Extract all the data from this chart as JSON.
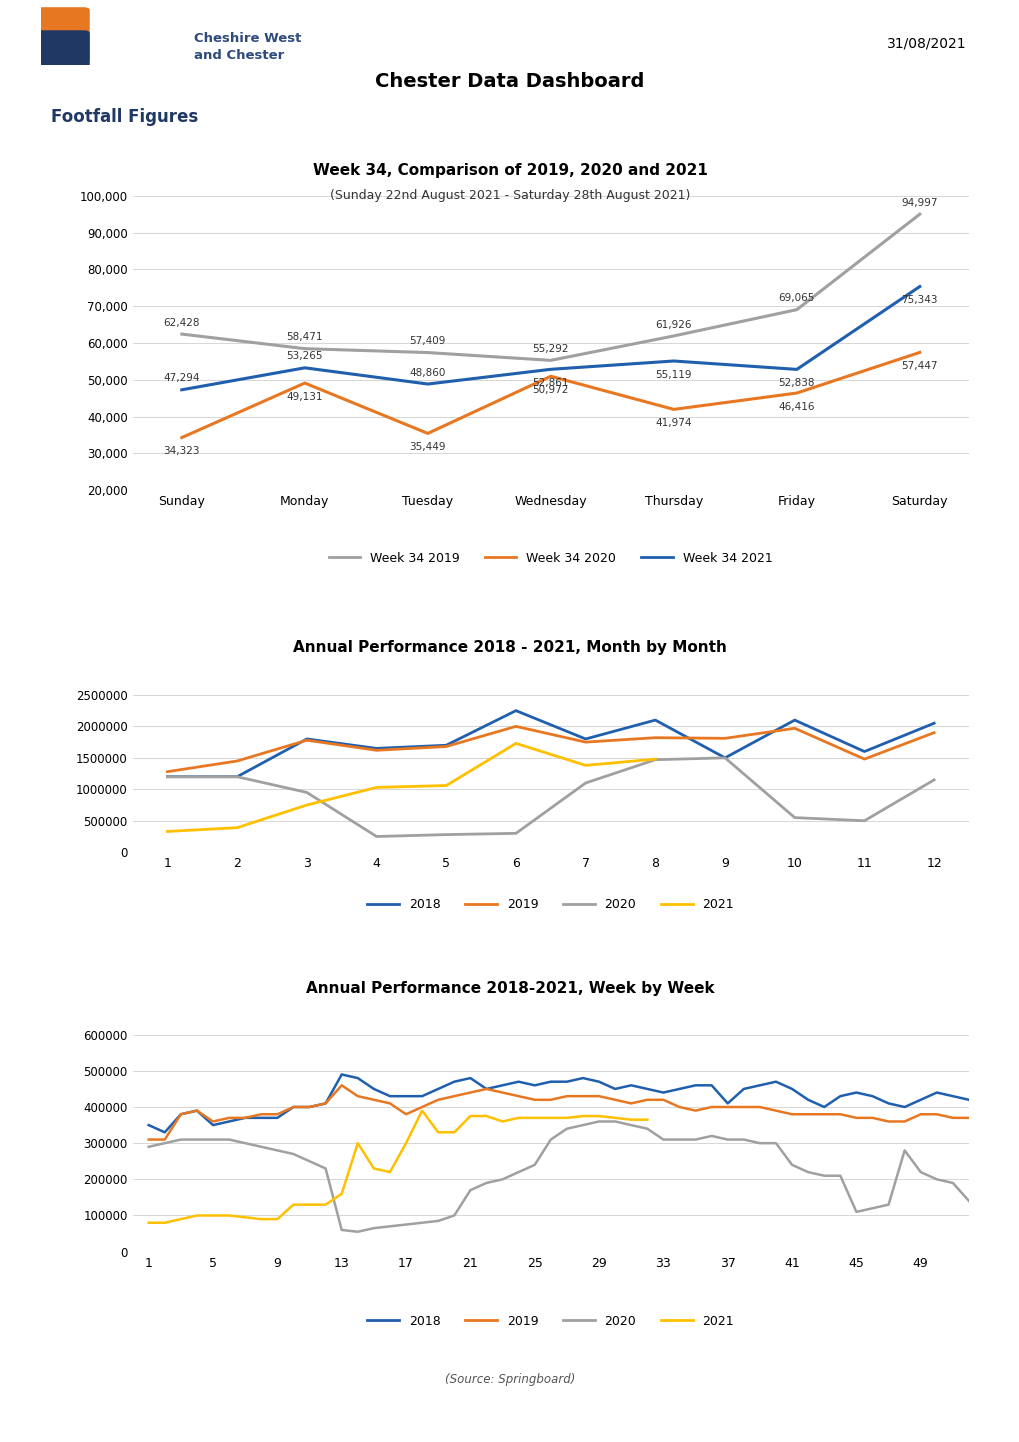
{
  "title": "Chester Data Dashboard",
  "date": "31/08/2021",
  "section1_title": "Footfall Figures",
  "chart1_title": "Week 34, Comparison of 2019, 2020 and 2021",
  "chart1_subtitle": "(Sunday 22nd August 2021 - Saturday 28th August 2021)",
  "chart1_days": [
    "Sunday",
    "Monday",
    "Tuesday",
    "Wednesday",
    "Thursday",
    "Friday",
    "Saturday"
  ],
  "chart1_2019": [
    62428,
    58471,
    57409,
    55292,
    61926,
    69065,
    94997
  ],
  "chart1_2020": [
    34323,
    49131,
    35449,
    50972,
    41974,
    46416,
    57447
  ],
  "chart1_2021": [
    47294,
    53265,
    48860,
    52861,
    55119,
    52838,
    75343
  ],
  "chart1_ylim": [
    20000,
    105000
  ],
  "chart1_yticks": [
    20000,
    30000,
    40000,
    50000,
    60000,
    70000,
    80000,
    90000,
    100000
  ],
  "chart1_legend": [
    "Week 34 2019",
    "Week 34 2020",
    "Week 34 2021"
  ],
  "chart1_colors": [
    "#A0A0A0",
    "#E87722",
    "#1F5FAD"
  ],
  "chart2_title": "Annual Performance 2018 - 2021, Month by Month",
  "chart2_months": [
    1,
    2,
    3,
    4,
    5,
    6,
    7,
    8,
    9,
    10,
    11,
    12
  ],
  "chart2_2018": [
    1200000,
    1200000,
    1800000,
    1650000,
    1700000,
    2250000,
    1800000,
    2100000,
    1500000,
    2100000,
    1600000,
    2050000
  ],
  "chart2_2019": [
    1280000,
    1450000,
    1780000,
    1620000,
    1680000,
    2000000,
    1750000,
    1820000,
    1810000,
    1970000,
    1480000,
    1900000
  ],
  "chart2_2020": [
    1200000,
    1200000,
    950000,
    250000,
    280000,
    300000,
    1100000,
    1470000,
    1500000,
    550000,
    500000,
    1150000
  ],
  "chart2_2021": [
    330000,
    390000,
    750000,
    1030000,
    1060000,
    1730000,
    1380000,
    1480000,
    null,
    null,
    null,
    null
  ],
  "chart2_legend": [
    "2018",
    "2019",
    "2020",
    "2021"
  ],
  "chart2_colors": [
    "#1F5FAD",
    "#E87722",
    "#A0A0A0",
    "#FFC000"
  ],
  "chart2_ylim": [
    0,
    2750000
  ],
  "chart2_yticks": [
    0,
    500000,
    1000000,
    1500000,
    2000000,
    2500000
  ],
  "chart3_title": "Annual Performance 2018-2021, Week by Week",
  "chart3_xticks": [
    1,
    5,
    9,
    13,
    17,
    21,
    25,
    29,
    33,
    37,
    41,
    45,
    49
  ],
  "chart3_ylim": [
    0,
    650000
  ],
  "chart3_yticks": [
    0,
    100000,
    200000,
    300000,
    400000,
    500000,
    600000
  ],
  "chart3_legend": [
    "2018",
    "2019",
    "2020",
    "2021"
  ],
  "chart3_colors": [
    "#1F5FAD",
    "#E87722",
    "#A0A0A0",
    "#FFC000"
  ],
  "chart3_2018": [
    350000,
    330000,
    380000,
    390000,
    350000,
    360000,
    370000,
    370000,
    370000,
    400000,
    400000,
    410000,
    490000,
    480000,
    450000,
    430000,
    430000,
    430000,
    450000,
    470000,
    480000,
    450000,
    460000,
    470000,
    460000,
    470000,
    470000,
    480000,
    470000,
    450000,
    460000,
    450000,
    440000,
    450000,
    460000,
    460000,
    410000,
    450000,
    460000,
    470000,
    450000,
    420000,
    400000,
    430000,
    440000,
    430000,
    410000,
    400000,
    420000,
    440000,
    430000,
    420000
  ],
  "chart3_2019": [
    310000,
    310000,
    380000,
    390000,
    360000,
    370000,
    370000,
    380000,
    380000,
    400000,
    400000,
    410000,
    460000,
    430000,
    420000,
    410000,
    380000,
    400000,
    420000,
    430000,
    440000,
    450000,
    440000,
    430000,
    420000,
    420000,
    430000,
    430000,
    430000,
    420000,
    410000,
    420000,
    420000,
    400000,
    390000,
    400000,
    400000,
    400000,
    400000,
    390000,
    380000,
    380000,
    380000,
    380000,
    370000,
    370000,
    360000,
    360000,
    380000,
    380000,
    370000,
    370000
  ],
  "chart3_2020": [
    290000,
    300000,
    310000,
    310000,
    310000,
    310000,
    300000,
    290000,
    280000,
    270000,
    250000,
    230000,
    60000,
    55000,
    65000,
    70000,
    75000,
    80000,
    85000,
    100000,
    170000,
    190000,
    200000,
    220000,
    240000,
    310000,
    340000,
    350000,
    360000,
    360000,
    350000,
    340000,
    310000,
    310000,
    310000,
    320000,
    310000,
    310000,
    300000,
    300000,
    240000,
    220000,
    210000,
    210000,
    110000,
    120000,
    130000,
    280000,
    220000,
    200000,
    190000,
    140000
  ],
  "chart3_2021": [
    80000,
    80000,
    90000,
    100000,
    100000,
    100000,
    95000,
    90000,
    90000,
    130000,
    130000,
    130000,
    160000,
    300000,
    230000,
    220000,
    300000,
    390000,
    330000,
    330000,
    375000,
    375000,
    360000,
    370000,
    370000,
    370000,
    370000,
    375000,
    375000,
    370000,
    365000,
    365000,
    null,
    null,
    null,
    null,
    null,
    null,
    null,
    null,
    null,
    null,
    null,
    null,
    null,
    null,
    null,
    null,
    null,
    null,
    null,
    null
  ],
  "source_text": "(Source: Springboard)",
  "background_color": "#FFFFFF",
  "box_border_color": "#2E5FAD",
  "section_title_color": "#1F3864",
  "grid_color": "#D0D0D0"
}
